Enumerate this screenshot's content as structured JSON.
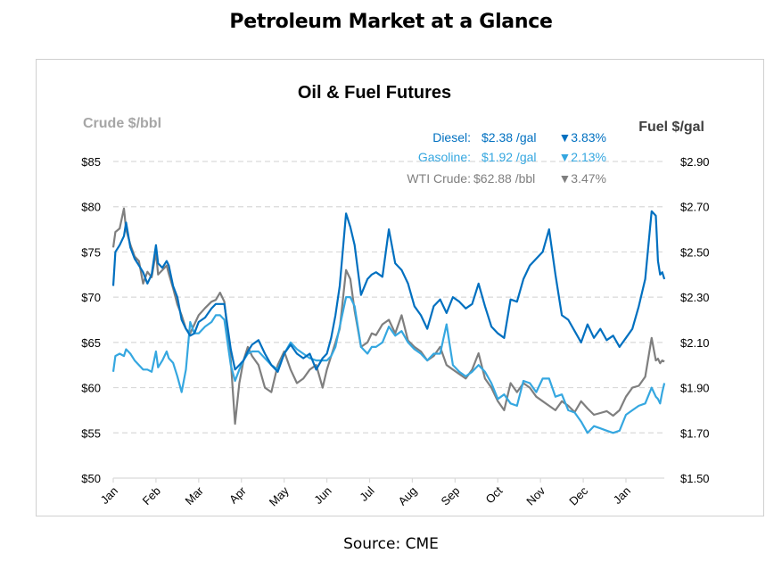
{
  "page": {
    "title": "Petroleum Market at a Glance",
    "source": "Source: CME"
  },
  "chart_data": {
    "type": "line",
    "title": "Oil & Fuel Futures",
    "ylabel_left": "Crude $/bbl",
    "ylabel_right": "Fuel $/gal",
    "ylim_left": [
      50,
      85
    ],
    "ylim_right": [
      1.5,
      2.9
    ],
    "yticks_left": [
      "$85",
      "$80",
      "$75",
      "$70",
      "$65",
      "$60",
      "$55",
      "$50"
    ],
    "yticks_left_values": [
      85,
      80,
      75,
      70,
      65,
      60,
      55,
      50
    ],
    "yticks_right": [
      "$2.90",
      "$2.70",
      "$2.50",
      "$2.30",
      "$2.10",
      "$1.90",
      "$1.70",
      "$1.50"
    ],
    "yticks_right_values": [
      2.9,
      2.7,
      2.5,
      2.3,
      2.1,
      1.9,
      1.7,
      1.5
    ],
    "xlim": [
      0,
      12.9
    ],
    "xticks": [
      "Jan",
      "Feb",
      "Mar",
      "Apr",
      "May",
      "Jun",
      "Jul",
      "Aug",
      "Sep",
      "Oct",
      "Nov",
      "Dec",
      "Jan"
    ],
    "xticks_values": [
      0,
      1,
      2,
      3,
      4,
      5,
      6,
      7,
      8,
      9,
      10,
      11,
      12
    ],
    "grid": true,
    "legend_position": "top-right",
    "legend": [
      {
        "label": "Diesel:",
        "price": "$2.38 /gal",
        "change": "▼3.83%",
        "color": "#0070c0"
      },
      {
        "label": "Gasoline:",
        "price": "$1.92 /gal",
        "change": "▼2.13%",
        "color": "#35a7e0"
      },
      {
        "label": "WTI Crude:",
        "price": "$62.88 /bbl",
        "change": "▼3.47%",
        "color": "#7f7f7f"
      }
    ],
    "series": [
      {
        "name": "Diesel",
        "axis": "right",
        "color": "#0070c0",
        "x": [
          0,
          0.05,
          0.15,
          0.25,
          0.3,
          0.4,
          0.5,
          0.6,
          0.7,
          0.8,
          0.9,
          1.0,
          1.05,
          1.15,
          1.25,
          1.3,
          1.4,
          1.5,
          1.6,
          1.7,
          1.8,
          1.9,
          2.0,
          2.15,
          2.3,
          2.4,
          2.5,
          2.6,
          2.75,
          2.85,
          2.95,
          3.05,
          3.15,
          3.25,
          3.4,
          3.55,
          3.7,
          3.85,
          4.0,
          4.15,
          4.3,
          4.45,
          4.6,
          4.75,
          4.9,
          5.0,
          5.1,
          5.2,
          5.3,
          5.45,
          5.55,
          5.65,
          5.8,
          5.95,
          6.05,
          6.15,
          6.3,
          6.45,
          6.6,
          6.75,
          6.9,
          7.05,
          7.2,
          7.35,
          7.5,
          7.65,
          7.8,
          7.95,
          8.1,
          8.25,
          8.4,
          8.55,
          8.7,
          8.85,
          9.0,
          9.15,
          9.3,
          9.45,
          9.6,
          9.75,
          9.9,
          10.05,
          10.2,
          10.35,
          10.5,
          10.65,
          10.8,
          10.95,
          11.1,
          11.25,
          11.4,
          11.55,
          11.7,
          11.85,
          12.0,
          12.15,
          12.3,
          12.45,
          12.6,
          12.7,
          12.75,
          12.8,
          12.85,
          12.9
        ],
        "y": [
          2.35,
          2.5,
          2.53,
          2.57,
          2.63,
          2.52,
          2.47,
          2.44,
          2.41,
          2.36,
          2.4,
          2.53,
          2.45,
          2.43,
          2.46,
          2.44,
          2.35,
          2.3,
          2.2,
          2.16,
          2.13,
          2.14,
          2.19,
          2.21,
          2.25,
          2.27,
          2.27,
          2.27,
          2.07,
          1.98,
          2.0,
          2.02,
          2.06,
          2.09,
          2.11,
          2.05,
          2.0,
          1.97,
          2.05,
          2.09,
          2.05,
          2.03,
          2.05,
          1.98,
          2.03,
          2.05,
          2.12,
          2.22,
          2.35,
          2.67,
          2.61,
          2.53,
          2.31,
          2.38,
          2.4,
          2.41,
          2.39,
          2.6,
          2.45,
          2.42,
          2.36,
          2.26,
          2.22,
          2.16,
          2.26,
          2.29,
          2.23,
          2.3,
          2.28,
          2.25,
          2.27,
          2.36,
          2.26,
          2.17,
          2.14,
          2.12,
          2.29,
          2.28,
          2.38,
          2.44,
          2.47,
          2.5,
          2.6,
          2.4,
          2.22,
          2.2,
          2.15,
          2.1,
          2.18,
          2.12,
          2.16,
          2.11,
          2.13,
          2.08,
          2.12,
          2.16,
          2.26,
          2.38,
          2.68,
          2.66,
          2.46,
          2.4,
          2.41,
          2.38
        ]
      },
      {
        "name": "Gasoline",
        "axis": "right",
        "color": "#35a7e0",
        "x": [
          0,
          0.05,
          0.15,
          0.25,
          0.3,
          0.4,
          0.5,
          0.6,
          0.7,
          0.8,
          0.9,
          1.0,
          1.05,
          1.15,
          1.25,
          1.3,
          1.4,
          1.5,
          1.6,
          1.7,
          1.8,
          1.9,
          2.0,
          2.15,
          2.3,
          2.4,
          2.5,
          2.6,
          2.75,
          2.85,
          2.95,
          3.05,
          3.15,
          3.25,
          3.4,
          3.55,
          3.7,
          3.85,
          4.0,
          4.15,
          4.3,
          4.45,
          4.6,
          4.75,
          4.9,
          5.0,
          5.1,
          5.2,
          5.3,
          5.45,
          5.55,
          5.65,
          5.8,
          5.95,
          6.05,
          6.15,
          6.3,
          6.45,
          6.6,
          6.75,
          6.9,
          7.05,
          7.2,
          7.35,
          7.5,
          7.65,
          7.8,
          7.95,
          8.1,
          8.25,
          8.4,
          8.55,
          8.7,
          8.85,
          9.0,
          9.15,
          9.3,
          9.45,
          9.6,
          9.75,
          9.9,
          10.05,
          10.2,
          10.35,
          10.5,
          10.65,
          10.8,
          10.95,
          11.1,
          11.25,
          11.4,
          11.55,
          11.7,
          11.85,
          12.0,
          12.15,
          12.3,
          12.45,
          12.6,
          12.7,
          12.75,
          12.8,
          12.85,
          12.9
        ],
        "y": [
          1.97,
          2.04,
          2.05,
          2.04,
          2.07,
          2.05,
          2.02,
          2.0,
          1.98,
          1.98,
          1.97,
          2.06,
          1.99,
          2.02,
          2.06,
          2.03,
          2.01,
          1.95,
          1.88,
          1.98,
          2.19,
          2.14,
          2.14,
          2.17,
          2.19,
          2.22,
          2.22,
          2.2,
          2.0,
          1.93,
          1.98,
          2.02,
          2.05,
          2.06,
          2.06,
          2.03,
          2.0,
          1.98,
          2.05,
          2.1,
          2.07,
          2.05,
          2.03,
          2.02,
          2.02,
          2.02,
          2.04,
          2.08,
          2.17,
          2.3,
          2.3,
          2.26,
          2.08,
          2.05,
          2.08,
          2.08,
          2.1,
          2.17,
          2.13,
          2.15,
          2.1,
          2.07,
          2.05,
          2.02,
          2.05,
          2.05,
          2.18,
          2.0,
          1.97,
          1.95,
          1.97,
          2.0,
          1.97,
          1.92,
          1.85,
          1.87,
          1.83,
          1.82,
          1.93,
          1.92,
          1.88,
          1.94,
          1.94,
          1.86,
          1.87,
          1.8,
          1.79,
          1.75,
          1.7,
          1.73,
          1.72,
          1.71,
          1.7,
          1.71,
          1.78,
          1.8,
          1.82,
          1.83,
          1.9,
          1.86,
          1.85,
          1.83,
          1.88,
          1.92
        ]
      },
      {
        "name": "WTI Crude",
        "axis": "left",
        "color": "#7f7f7f",
        "x": [
          0,
          0.05,
          0.15,
          0.25,
          0.3,
          0.4,
          0.5,
          0.6,
          0.7,
          0.8,
          0.9,
          1.0,
          1.05,
          1.15,
          1.25,
          1.3,
          1.4,
          1.5,
          1.6,
          1.7,
          1.8,
          1.9,
          2.0,
          2.15,
          2.3,
          2.4,
          2.5,
          2.6,
          2.75,
          2.85,
          2.95,
          3.05,
          3.15,
          3.25,
          3.4,
          3.55,
          3.7,
          3.85,
          4.0,
          4.15,
          4.3,
          4.45,
          4.6,
          4.75,
          4.9,
          5.0,
          5.1,
          5.2,
          5.3,
          5.45,
          5.55,
          5.65,
          5.8,
          5.95,
          6.05,
          6.15,
          6.3,
          6.45,
          6.6,
          6.75,
          6.9,
          7.05,
          7.2,
          7.35,
          7.5,
          7.65,
          7.8,
          7.95,
          8.1,
          8.25,
          8.4,
          8.55,
          8.7,
          8.85,
          9.0,
          9.15,
          9.3,
          9.45,
          9.6,
          9.75,
          9.9,
          10.05,
          10.2,
          10.35,
          10.5,
          10.65,
          10.8,
          10.95,
          11.1,
          11.25,
          11.4,
          11.55,
          11.7,
          11.85,
          12.0,
          12.15,
          12.3,
          12.45,
          12.6,
          12.7,
          12.75,
          12.8,
          12.85,
          12.9
        ],
        "y": [
          75.5,
          77.2,
          77.6,
          79.8,
          77.5,
          75.8,
          74.5,
          74.0,
          71.5,
          72.8,
          72.2,
          75.0,
          72.5,
          73.0,
          73.5,
          72.6,
          71.0,
          69.2,
          68.0,
          66.5,
          66.0,
          67.0,
          68.0,
          68.8,
          69.5,
          69.7,
          70.5,
          69.5,
          63.0,
          56.0,
          60.5,
          63.0,
          64.5,
          63.5,
          62.5,
          60.0,
          59.5,
          62.5,
          64.0,
          62.0,
          60.5,
          61.0,
          62.0,
          62.5,
          60.0,
          62.0,
          63.5,
          65.0,
          66.5,
          73.0,
          72.0,
          68.5,
          64.5,
          65.0,
          66.0,
          65.8,
          67.0,
          67.5,
          66.0,
          68.0,
          65.2,
          64.5,
          64.0,
          63.0,
          63.5,
          64.5,
          62.5,
          62.0,
          61.5,
          61.0,
          62.0,
          63.8,
          61.0,
          60.0,
          58.5,
          57.5,
          60.5,
          59.5,
          60.5,
          60.0,
          59.0,
          58.5,
          58.0,
          57.5,
          58.5,
          58.0,
          57.3,
          58.5,
          57.7,
          57.0,
          57.2,
          57.4,
          56.9,
          57.5,
          59.0,
          60.0,
          60.2,
          61.2,
          65.5,
          63.0,
          63.2,
          62.7,
          63.0,
          62.88
        ]
      }
    ]
  }
}
